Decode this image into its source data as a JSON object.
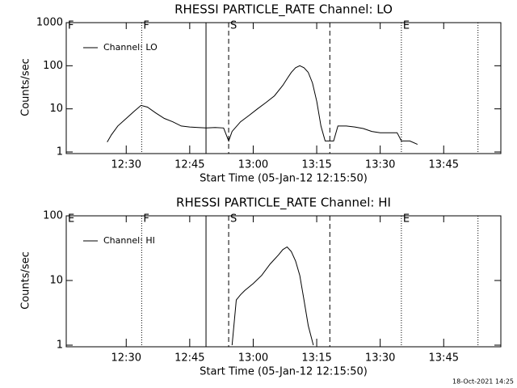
{
  "chart_data": [
    {
      "type": "line",
      "title": "RHESSI PARTICLE_RATE Channel: LO",
      "xlabel": "Start Time (05-Jan-12 12:15:50)",
      "ylabel": "Counts/sec",
      "xlim": [
        15.83,
        118.5
      ],
      "ylim": [
        1,
        1000
      ],
      "yscale": "log",
      "legend": "upper left",
      "edge_label": "F",
      "xticks": [
        {
          "value": 30,
          "label": "12:30"
        },
        {
          "value": 45,
          "label": "12:45"
        },
        {
          "value": 60,
          "label": "13:00"
        },
        {
          "value": 75,
          "label": "13:15"
        },
        {
          "value": 90,
          "label": "13:30"
        },
        {
          "value": 105,
          "label": "13:45"
        }
      ],
      "yticks": [
        1,
        10,
        100,
        1000
      ],
      "vlines": [
        {
          "value": 33.65,
          "style": "dotted",
          "label": "F"
        },
        {
          "value": 48.85,
          "style": "solid"
        },
        {
          "value": 54.2,
          "style": "dashed",
          "label": "S"
        },
        {
          "value": 78.1,
          "style": "dashed"
        },
        {
          "value": 95,
          "style": "dotted",
          "label": "E"
        },
        {
          "value": 113.1,
          "style": "dotted"
        }
      ],
      "x": [
        23.5,
        24.5,
        25.5,
        26.5,
        28,
        30,
        32,
        33.5,
        35,
        37,
        39,
        41,
        43,
        45,
        47,
        49,
        51,
        53,
        54.2,
        55,
        57,
        59,
        61,
        63,
        65,
        67,
        68,
        69,
        70,
        71,
        72,
        73,
        74,
        75,
        76,
        77,
        79,
        80,
        82,
        84,
        86,
        88,
        90,
        92,
        94,
        95,
        97,
        98.8
      ],
      "series": [
        {
          "name": "Channel: LO",
          "color": "#000000",
          "values": [
            1.6,
            null,
            1.7,
            2.5,
            4,
            6,
            9,
            12,
            11,
            8,
            6,
            5,
            4,
            3.8,
            3.7,
            3.6,
            3.7,
            3.6,
            1.8,
            3,
            5,
            7,
            10,
            14,
            20,
            35,
            50,
            70,
            90,
            100,
            90,
            70,
            40,
            15,
            4,
            1.8,
            1.8,
            4,
            4,
            3.8,
            3.5,
            3,
            2.8,
            2.8,
            2.8,
            1.8,
            1.8,
            1.5
          ]
        }
      ]
    },
    {
      "type": "line",
      "title": "RHESSI PARTICLE_RATE Channel: HI",
      "xlabel": "Start Time (05-Jan-12 12:15:50)",
      "ylabel": "Counts/sec",
      "xlim": [
        15.83,
        118.5
      ],
      "ylim": [
        1,
        100
      ],
      "yscale": "log",
      "legend": "upper left",
      "edge_label": "E",
      "xticks": [
        {
          "value": 30,
          "label": "12:30"
        },
        {
          "value": 45,
          "label": "12:45"
        },
        {
          "value": 60,
          "label": "13:00"
        },
        {
          "value": 75,
          "label": "13:15"
        },
        {
          "value": 90,
          "label": "13:30"
        },
        {
          "value": 105,
          "label": "13:45"
        }
      ],
      "yticks": [
        1,
        10,
        100
      ],
      "vlines": [
        {
          "value": 33.65,
          "style": "dotted",
          "label": "F"
        },
        {
          "value": 48.85,
          "style": "solid"
        },
        {
          "value": 54.2,
          "style": "dashed",
          "label": "S"
        },
        {
          "value": 78.1,
          "style": "dashed"
        },
        {
          "value": 95,
          "style": "dotted",
          "label": "E"
        },
        {
          "value": 113.1,
          "style": "dotted"
        }
      ],
      "x": [
        55,
        56,
        57,
        58,
        60,
        62,
        64,
        66,
        67,
        68,
        69,
        70,
        71,
        72,
        73,
        74.2
      ],
      "series": [
        {
          "name": "Channel: HI",
          "color": "#000000",
          "values": [
            1,
            5,
            6,
            7,
            9,
            12,
            18,
            25,
            30,
            33,
            28,
            20,
            12,
            5,
            2,
            1
          ]
        }
      ]
    }
  ],
  "timestamp": "18-Oct-2021 14:25"
}
